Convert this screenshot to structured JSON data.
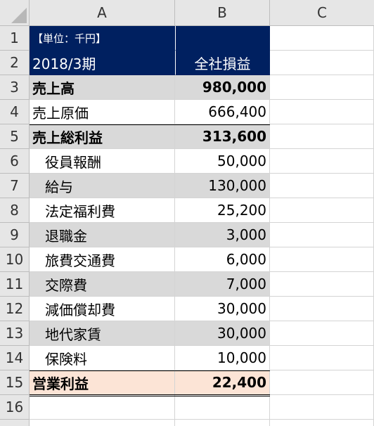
{
  "columns": [
    "A",
    "B",
    "C"
  ],
  "rows": [
    "1",
    "2",
    "3",
    "4",
    "5",
    "6",
    "7",
    "8",
    "9",
    "10",
    "11",
    "12",
    "13",
    "14",
    "15",
    "16"
  ],
  "header": {
    "unit": "【単位：千円】",
    "period": "2018/3期",
    "company": "全社損益"
  },
  "items": [
    {
      "label": "売上高",
      "value": "980,000"
    },
    {
      "label": "売上原価",
      "value": "666,400"
    },
    {
      "label": "売上総利益",
      "value": "313,600"
    },
    {
      "label": "役員報酬",
      "value": "50,000"
    },
    {
      "label": "給与",
      "value": "130,000"
    },
    {
      "label": "法定福利費",
      "value": "25,200"
    },
    {
      "label": "退職金",
      "value": "3,000"
    },
    {
      "label": "旅費交通費",
      "value": "6,000"
    },
    {
      "label": "交際費",
      "value": "7,000"
    },
    {
      "label": "減価償却費",
      "value": "30,000"
    },
    {
      "label": "地代家賃",
      "value": "30,000"
    },
    {
      "label": "保険料",
      "value": "10,000"
    },
    {
      "label": "営業利益",
      "value": "22,400"
    }
  ],
  "colors": {
    "header_fill": "#002060",
    "band_fill": "#d9d9d9",
    "total_fill": "#fce4d6"
  }
}
